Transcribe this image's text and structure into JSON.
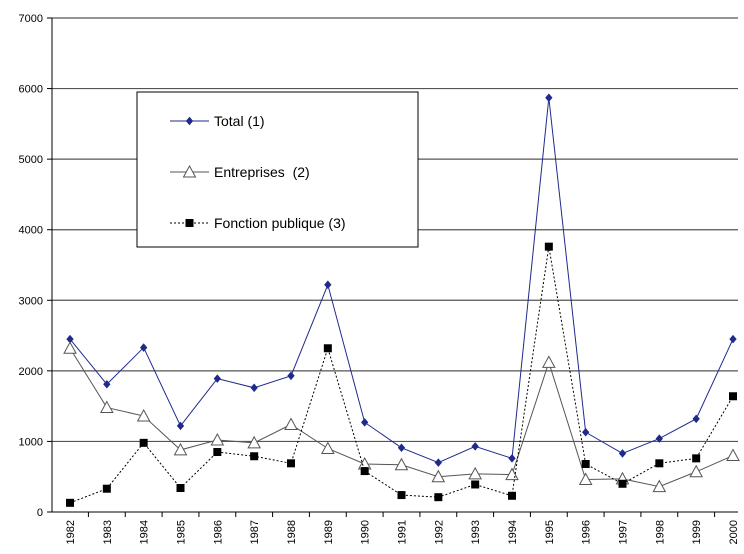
{
  "chart_data": {
    "type": "line",
    "title": "",
    "xlabel": "",
    "ylabel": "",
    "categories": [
      "1982",
      "1983",
      "1984",
      "1985",
      "1986",
      "1987",
      "1988",
      "1989",
      "1990",
      "1991",
      "1992",
      "1993",
      "1994",
      "1995",
      "1996",
      "1997",
      "1998",
      "1999",
      "2000"
    ],
    "ylim": [
      0,
      7000
    ],
    "yticks": [
      "0",
      "1000",
      "2000",
      "3000",
      "4000",
      "5000",
      "6000",
      "7000"
    ],
    "grid": "horizontal",
    "legend_position": "upper-left",
    "series": [
      {
        "name": "Total (1)",
        "color": "#1f2a8c",
        "line_style": "solid",
        "marker": "diamond",
        "values": [
          2450,
          1810,
          2330,
          1220,
          1890,
          1760,
          1930,
          3220,
          1270,
          910,
          700,
          930,
          760,
          5870,
          1130,
          830,
          1040,
          1320,
          2450
        ]
      },
      {
        "name": "Entreprises  (2)",
        "color": "#555555",
        "line_style": "solid",
        "marker": "triangle",
        "values": [
          2320,
          1480,
          1360,
          880,
          1020,
          980,
          1240,
          900,
          680,
          670,
          500,
          540,
          530,
          2120,
          460,
          470,
          360,
          570,
          800
        ]
      },
      {
        "name": "Fonction publique (3)",
        "color": "#000000",
        "line_style": "dotted",
        "marker": "square",
        "values": [
          130,
          330,
          980,
          340,
          850,
          790,
          690,
          2320,
          580,
          240,
          210,
          390,
          230,
          3760,
          680,
          400,
          690,
          760,
          1640
        ]
      }
    ]
  }
}
